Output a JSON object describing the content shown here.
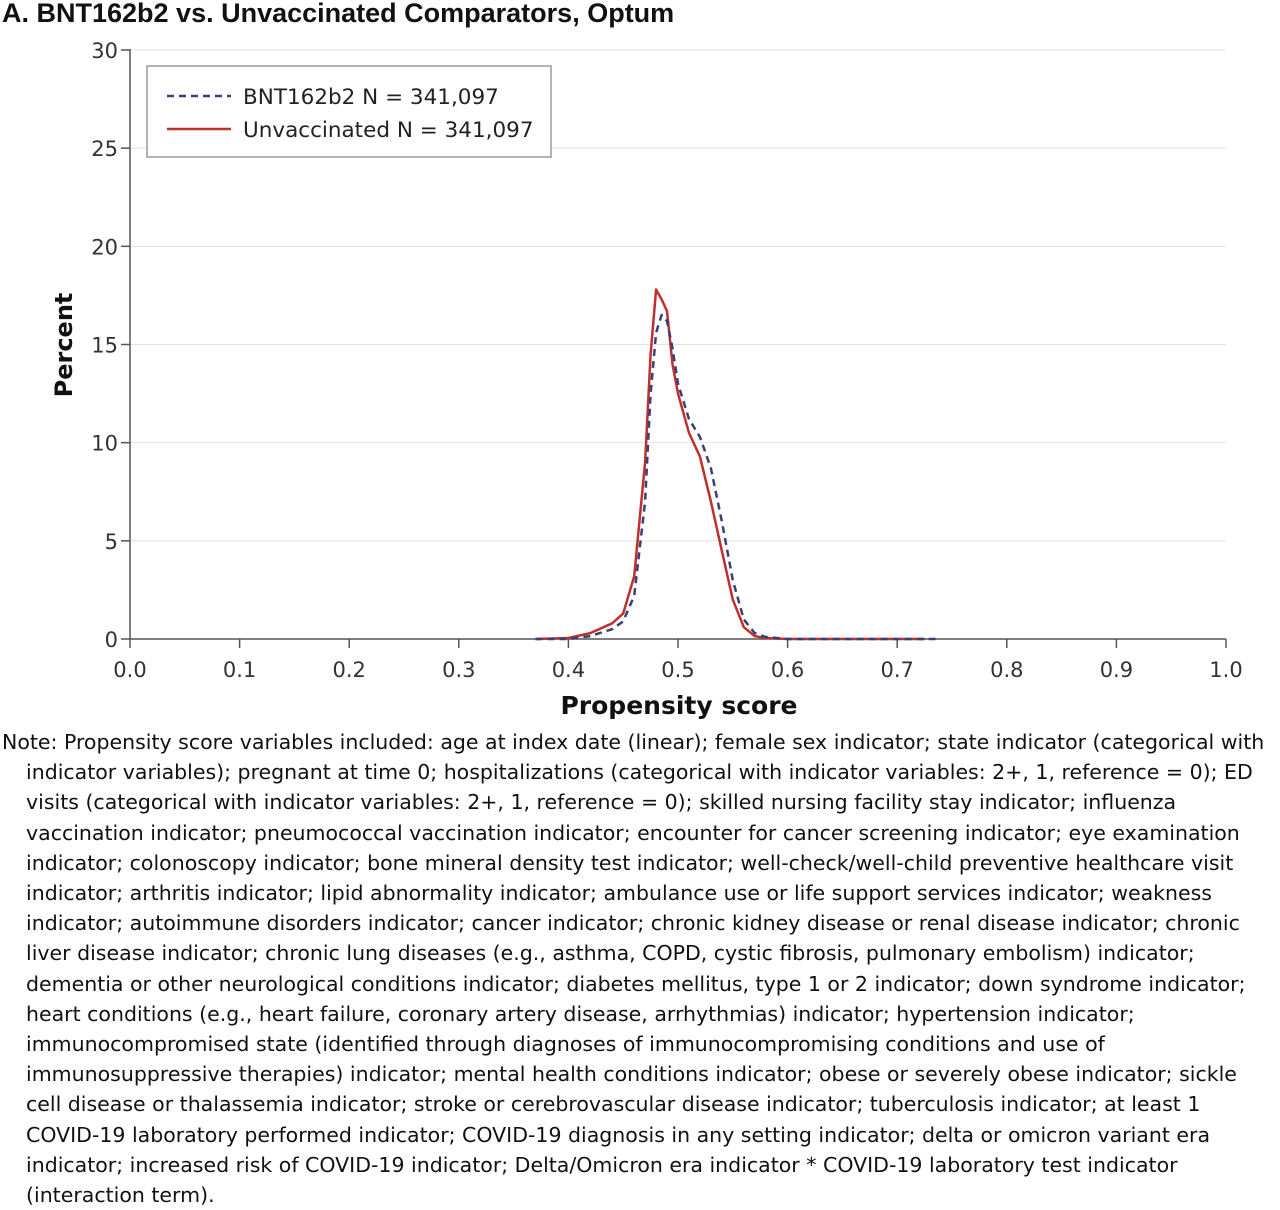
{
  "chart_data": {
    "type": "line",
    "title": "A. BNT162b2 vs. Unvaccinated Comparators, Optum",
    "xlabel": "Propensity score",
    "ylabel": "Percent",
    "xlim": [
      0.0,
      1.0
    ],
    "ylim": [
      0,
      30
    ],
    "xticks": [
      "0.0",
      "0.1",
      "0.2",
      "0.3",
      "0.4",
      "0.5",
      "0.6",
      "0.7",
      "0.8",
      "0.9",
      "1.0"
    ],
    "yticks": [
      "0",
      "5",
      "10",
      "15",
      "20",
      "25",
      "30"
    ],
    "grid": "horizontal",
    "legend_position": "top-left",
    "series": [
      {
        "name": "BNT162b2 N = 341,097",
        "style": "dashed",
        "color": "#3a3f7a",
        "x": [
          0.37,
          0.4,
          0.42,
          0.44,
          0.45,
          0.46,
          0.47,
          0.475,
          0.48,
          0.485,
          0.49,
          0.495,
          0.5,
          0.51,
          0.52,
          0.53,
          0.54,
          0.55,
          0.56,
          0.57,
          0.58,
          0.6,
          0.65,
          0.7,
          0.735
        ],
        "y": [
          0.0,
          0.0,
          0.15,
          0.5,
          0.9,
          2.2,
          7.0,
          12.5,
          15.6,
          16.5,
          16.2,
          14.8,
          13.0,
          11.2,
          10.3,
          8.7,
          6.0,
          3.0,
          1.0,
          0.3,
          0.1,
          0.0,
          0.0,
          0.0,
          0.0
        ]
      },
      {
        "name": "Unvaccinated N = 341,097",
        "style": "solid",
        "color": "#c0302b",
        "x": [
          0.37,
          0.4,
          0.42,
          0.44,
          0.45,
          0.46,
          0.47,
          0.475,
          0.48,
          0.485,
          0.49,
          0.495,
          0.5,
          0.51,
          0.52,
          0.53,
          0.54,
          0.55,
          0.56,
          0.57,
          0.58,
          0.6,
          0.65,
          0.7,
          0.725
        ],
        "y": [
          0.0,
          0.05,
          0.3,
          0.8,
          1.3,
          3.2,
          9.0,
          14.5,
          17.8,
          17.3,
          16.7,
          14.0,
          12.5,
          10.5,
          9.3,
          7.0,
          4.5,
          2.0,
          0.6,
          0.15,
          0.05,
          0.0,
          0.0,
          0.0,
          0.0
        ]
      }
    ]
  },
  "note": "Note: Propensity score variables included: age at index date (linear); female sex indicator; state indicator (categorical with indicator variables); pregnant at time 0; hospitalizations (categorical with indicator variables: 2+, 1, reference = 0); ED visits (categorical with indicator variables: 2+, 1, reference = 0); skilled nursing facility stay indicator; influenza vaccination indicator; pneumococcal vaccination indicator; encounter for cancer screening indicator; eye examination indicator; colonoscopy indicator; bone mineral density test indicator; well-check/well-child preventive healthcare visit indicator; arthritis indicator; lipid abnormality indicator; ambulance use or life support services indicator; weakness indicator; autoimmune disorders indicator; cancer indicator; chronic kidney disease or renal disease indicator; chronic liver disease indicator; chronic lung diseases (e.g., asthma, COPD, cystic fibrosis, pulmonary embolism) indicator; dementia or other neurological conditions indicator; diabetes mellitus, type 1 or 2 indicator; down syndrome indicator; heart conditions (e.g., heart failure, coronary artery disease, arrhythmias) indicator; hypertension indicator; immunocompromised state (identified through diagnoses of immunocompromising conditions and use of immunosuppressive therapies) indicator; mental health conditions indicator; obese or severely obese indicator; sickle cell disease or thalassemia indicator; stroke or cerebrovascular disease indicator; tuberculosis indicator; at least 1 COVID-19 laboratory performed indicator; COVID-19 diagnosis in any setting indicator; delta or omicron variant era indicator; increased risk of COVID-19 indicator; Delta/Omicron era indicator * COVID-19 laboratory test indicator (interaction term)."
}
